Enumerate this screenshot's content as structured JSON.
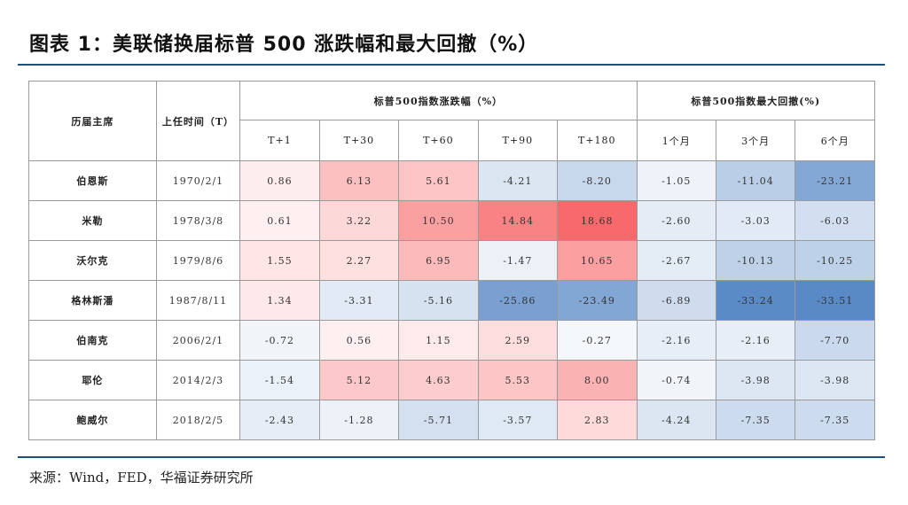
{
  "title": "图表 1：美联储换届标普 500 涨跌幅和最大回撤（%）",
  "source": "来源：Wind，FED，华福证券研究所",
  "chart_data": {
    "type": "table",
    "row_header": "历届主席",
    "date_header": "上任时间（T）",
    "groups": [
      {
        "label": "标普500指数涨跌幅（%）",
        "span": 5
      },
      {
        "label": "标普500指数最大回撤(%)",
        "span": 3
      }
    ],
    "columns": [
      "T+1",
      "T+30",
      "T+60",
      "T+90",
      "T+180",
      "1个月",
      "3个月",
      "6个月"
    ],
    "rows": [
      {
        "name": "伯恩斯",
        "date": "1970/2/1",
        "values": [
          "0.86",
          "6.13",
          "5.61",
          "-4.21",
          "-8.20",
          "-1.05",
          "-11.04",
          "-23.21"
        ]
      },
      {
        "name": "米勒",
        "date": "1978/3/8",
        "values": [
          "0.61",
          "3.22",
          "10.50",
          "14.84",
          "18.68",
          "-2.60",
          "-3.03",
          "-6.03"
        ]
      },
      {
        "name": "沃尔克",
        "date": "1979/8/6",
        "values": [
          "1.55",
          "2.27",
          "6.95",
          "-1.47",
          "10.65",
          "-2.67",
          "-10.13",
          "-10.25"
        ]
      },
      {
        "name": "格林斯潘",
        "date": "1987/8/11",
        "values": [
          "1.34",
          "-3.31",
          "-5.16",
          "-25.86",
          "-23.49",
          "-6.89",
          "-33.24",
          "-33.51"
        ]
      },
      {
        "name": "伯南克",
        "date": "2006/2/1",
        "values": [
          "-0.72",
          "0.56",
          "1.15",
          "2.59",
          "-0.27",
          "-2.16",
          "-2.16",
          "-7.70"
        ]
      },
      {
        "name": "耶伦",
        "date": "2014/2/3",
        "values": [
          "-1.54",
          "5.12",
          "4.63",
          "5.53",
          "8.00",
          "-0.74",
          "-3.98",
          "-3.98"
        ]
      },
      {
        "name": "鲍威尔",
        "date": "2018/2/5",
        "values": [
          "-2.43",
          "-1.28",
          "-5.71",
          "-3.57",
          "2.83",
          "-4.24",
          "-7.35",
          "-7.35"
        ]
      }
    ],
    "colors": {
      "positive": "#f8696b",
      "negative": "#5a8ac6",
      "neutral": "#ffffff"
    }
  }
}
